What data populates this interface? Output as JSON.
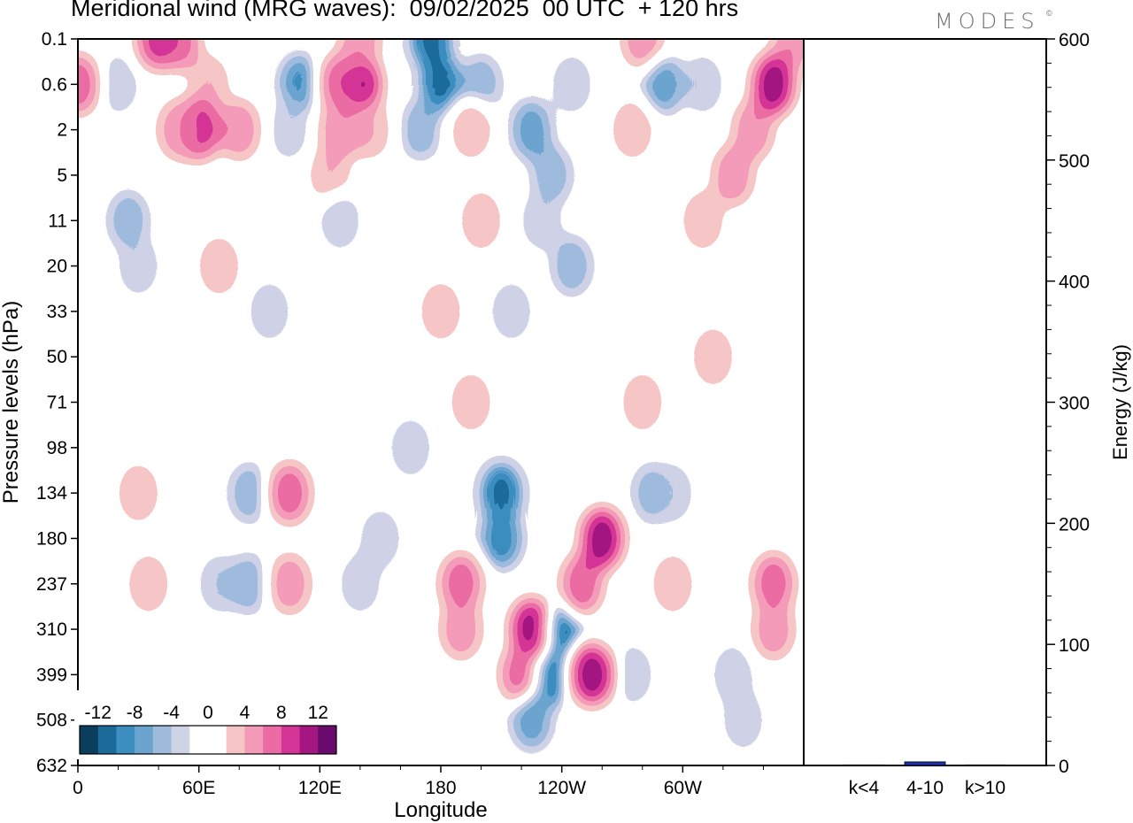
{
  "title": "Meridional wind (MRG waves):  09/02/2025  00 UTC  + 120 hrs",
  "brand": "MODES",
  "brand_mark": "©",
  "chart_data": [
    {
      "type": "heatmap",
      "title": "Meridional wind (MRG waves):  09/02/2025  00 UTC  + 120 hrs",
      "xlabel": "Longitude",
      "ylabel": "Pressure levels (hPa)",
      "x_ticks": [
        "0",
        "60E",
        "120E",
        "180",
        "120W",
        "60W"
      ],
      "x_tick_degrees": [
        0,
        60,
        120,
        180,
        240,
        300
      ],
      "xlim": [
        0,
        360
      ],
      "y_ticks": [
        "0.1",
        "0.6",
        "2",
        "5",
        "11",
        "20",
        "33",
        "50",
        "71",
        "98",
        "134",
        "180",
        "237",
        "310",
        "399",
        "508",
        "632"
      ],
      "colorbar": {
        "labels": [
          "-12",
          "-8",
          "-4",
          "0",
          "4",
          "8",
          "12"
        ],
        "colors": [
          "#0b3d5c",
          "#1a6a9a",
          "#3c8dc0",
          "#6ba5cf",
          "#9ebbdc",
          "#cfd3e6",
          "#ffffff",
          "#ffffff",
          "#f6c6c6",
          "#f39bb8",
          "#ec6ba4",
          "#d43496",
          "#a41680",
          "#6a0a6c"
        ]
      },
      "cells": [
        {
          "lon": 40,
          "p": "0.1",
          "v": 10
        },
        {
          "lon": 50,
          "p": "0.1",
          "v": 8
        },
        {
          "lon": 65,
          "p": "0.6",
          "v": 4
        },
        {
          "lon": 60,
          "p": "2",
          "v": 10
        },
        {
          "lon": 50,
          "p": "2",
          "v": 6
        },
        {
          "lon": 80,
          "p": "2",
          "v": 6
        },
        {
          "lon": 20,
          "p": "0.6",
          "v": -4
        },
        {
          "lon": 0,
          "p": "0.6",
          "v": 8
        },
        {
          "lon": 110,
          "p": "0.6",
          "v": -9
        },
        {
          "lon": 105,
          "p": "2",
          "v": -4
        },
        {
          "lon": 140,
          "p": "0.6",
          "v": 12
        },
        {
          "lon": 130,
          "p": "0.6",
          "v": 8
        },
        {
          "lon": 140,
          "p": "0.1",
          "v": 6
        },
        {
          "lon": 145,
          "p": "2",
          "v": 4
        },
        {
          "lon": 125,
          "p": "5",
          "v": 4
        },
        {
          "lon": 130,
          "p": "2",
          "v": 6
        },
        {
          "lon": 175,
          "p": "0.1",
          "v": -12
        },
        {
          "lon": 180,
          "p": "0.6",
          "v": -12
        },
        {
          "lon": 170,
          "p": "2",
          "v": -6
        },
        {
          "lon": 200,
          "p": "0.6",
          "v": -6
        },
        {
          "lon": 195,
          "p": "2",
          "v": 4
        },
        {
          "lon": 225,
          "p": "2",
          "v": -8
        },
        {
          "lon": 235,
          "p": "5",
          "v": -6
        },
        {
          "lon": 245,
          "p": "0.6",
          "v": -4
        },
        {
          "lon": 280,
          "p": "0.1",
          "v": 6
        },
        {
          "lon": 275,
          "p": "2",
          "v": 4
        },
        {
          "lon": 290,
          "p": "0.6",
          "v": -8
        },
        {
          "lon": 310,
          "p": "0.6",
          "v": -4
        },
        {
          "lon": 345,
          "p": "0.6",
          "v": 12
        },
        {
          "lon": 335,
          "p": "2",
          "v": 6
        },
        {
          "lon": 355,
          "p": "0.1",
          "v": 6
        },
        {
          "lon": 25,
          "p": "11",
          "v": -6
        },
        {
          "lon": 30,
          "p": "20",
          "v": -4
        },
        {
          "lon": 70,
          "p": "20",
          "v": 4
        },
        {
          "lon": 130,
          "p": "11",
          "v": -4
        },
        {
          "lon": 200,
          "p": "11",
          "v": 4
        },
        {
          "lon": 245,
          "p": "20",
          "v": -6
        },
        {
          "lon": 230,
          "p": "11",
          "v": -4
        },
        {
          "lon": 310,
          "p": "11",
          "v": 4
        },
        {
          "lon": 325,
          "p": "5",
          "v": 6
        },
        {
          "lon": 180,
          "p": "33",
          "v": 4
        },
        {
          "lon": 215,
          "p": "33",
          "v": -4
        },
        {
          "lon": 95,
          "p": "33",
          "v": -4
        },
        {
          "lon": 195,
          "p": "71",
          "v": 4
        },
        {
          "lon": 280,
          "p": "71",
          "v": 4
        },
        {
          "lon": 315,
          "p": "50",
          "v": 4
        },
        {
          "lon": 30,
          "p": "134",
          "v": 4
        },
        {
          "lon": 35,
          "p": "237",
          "v": 4
        },
        {
          "lon": 70,
          "p": "237",
          "v": -4
        },
        {
          "lon": 85,
          "p": "237",
          "v": -6
        },
        {
          "lon": 85,
          "p": "134",
          "v": -6
        },
        {
          "lon": 105,
          "p": "134",
          "v": 8
        },
        {
          "lon": 105,
          "p": "237",
          "v": 6
        },
        {
          "lon": 140,
          "p": "237",
          "v": -4
        },
        {
          "lon": 150,
          "p": "180",
          "v": -4
        },
        {
          "lon": 165,
          "p": "98",
          "v": -4
        },
        {
          "lon": 190,
          "p": "237",
          "v": 8
        },
        {
          "lon": 190,
          "p": "310",
          "v": 6
        },
        {
          "lon": 210,
          "p": "134",
          "v": -12
        },
        {
          "lon": 210,
          "p": "180",
          "v": -10
        },
        {
          "lon": 225,
          "p": "310",
          "v": 12
        },
        {
          "lon": 220,
          "p": "399",
          "v": 8
        },
        {
          "lon": 240,
          "p": "310",
          "v": -12
        },
        {
          "lon": 235,
          "p": "399",
          "v": -12
        },
        {
          "lon": 225,
          "p": "508",
          "v": -8
        },
        {
          "lon": 260,
          "p": "180",
          "v": 12
        },
        {
          "lon": 255,
          "p": "399",
          "v": 12
        },
        {
          "lon": 250,
          "p": "237",
          "v": 8
        },
        {
          "lon": 285,
          "p": "134",
          "v": -6
        },
        {
          "lon": 295,
          "p": "134",
          "v": -4
        },
        {
          "lon": 275,
          "p": "399",
          "v": -4
        },
        {
          "lon": 295,
          "p": "237",
          "v": 4
        },
        {
          "lon": 325,
          "p": "399",
          "v": -4
        },
        {
          "lon": 345,
          "p": "237",
          "v": 8
        },
        {
          "lon": 345,
          "p": "310",
          "v": 6
        },
        {
          "lon": 330,
          "p": "508",
          "v": -4
        }
      ]
    },
    {
      "type": "bar",
      "xlabel": "",
      "ylabel": "Energy (J/kg)",
      "categories": [
        "k<4",
        "4-10",
        "k>10"
      ],
      "values": [
        0.5,
        3,
        0.5
      ],
      "ylim": [
        0,
        600
      ],
      "y_ticks": [
        0,
        100,
        200,
        300,
        400,
        500,
        600
      ],
      "color": "#1c2fa8"
    }
  ]
}
